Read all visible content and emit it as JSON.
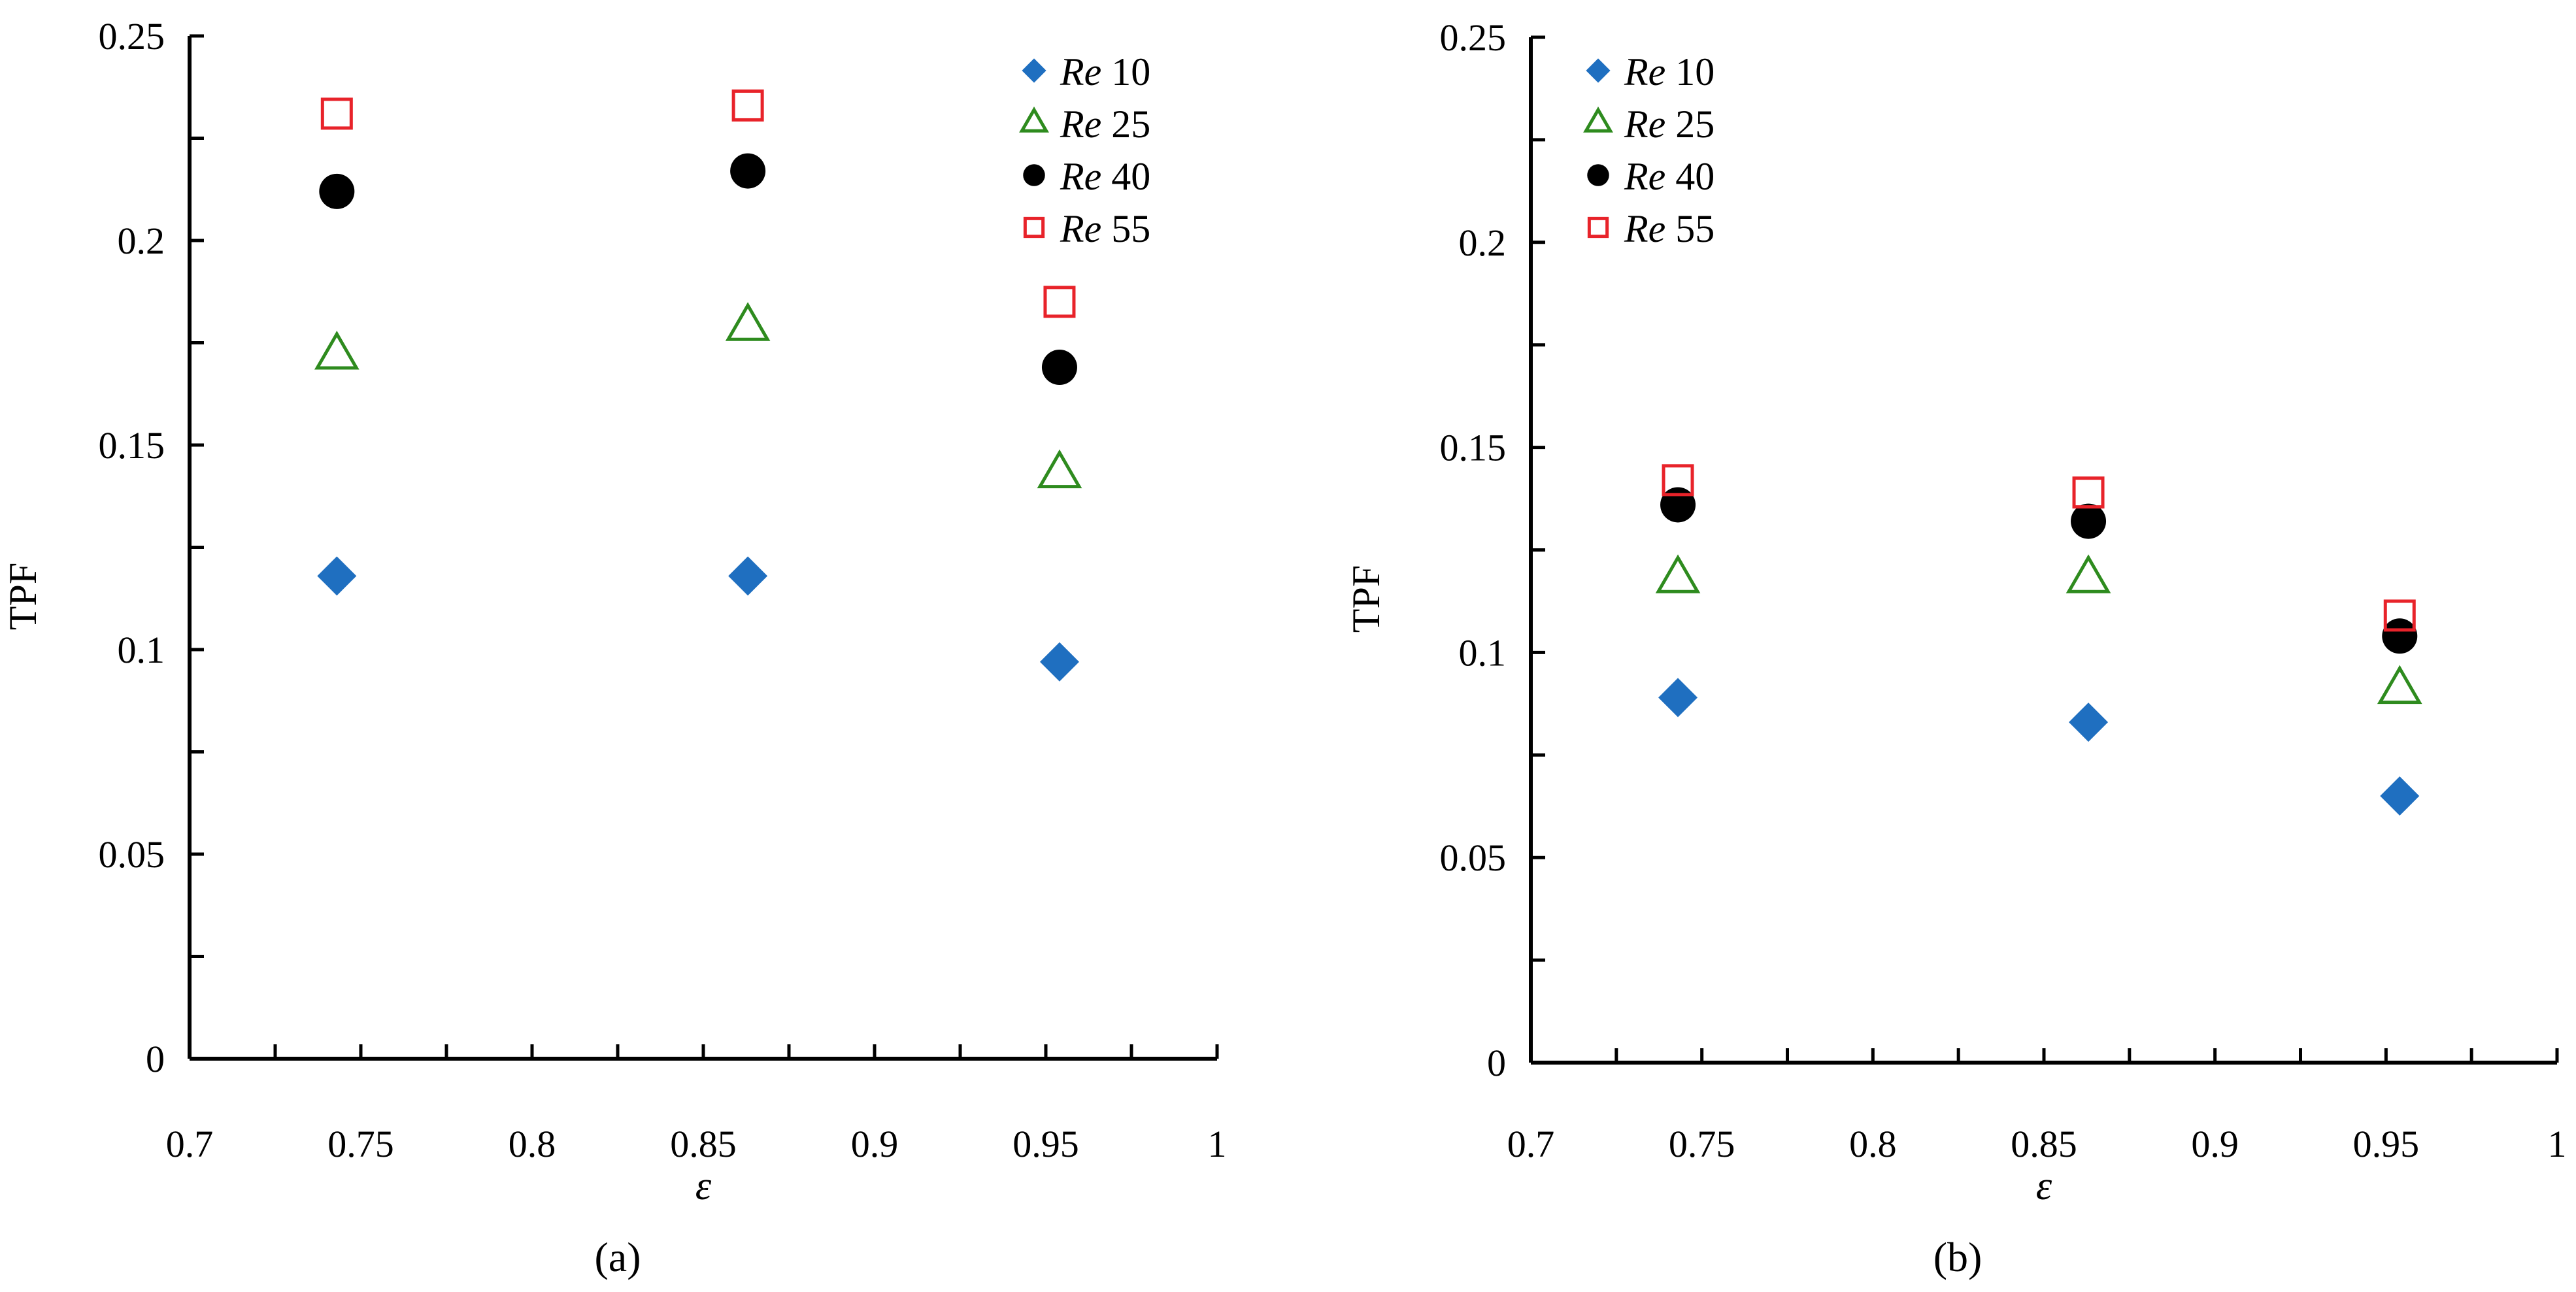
{
  "chart_data": [
    {
      "type": "scatter",
      "panel_label": "(a)",
      "xlabel": "ε",
      "ylabel": "TPF",
      "xlim": [
        0.7,
        1.0
      ],
      "ylim": [
        0,
        0.25
      ],
      "xticks": [
        "0.7",
        "0.75",
        "0.8",
        "0.85",
        "0.9",
        "0.95",
        "1"
      ],
      "yticks": [
        "0",
        "0.05",
        "0.1",
        "0.15",
        "0.2",
        "0.25"
      ],
      "legend_position": "top-right",
      "series": [
        {
          "name": "Re 10",
          "re_prefix": "Re",
          "re_value": "10",
          "marker": "diamond",
          "color": "#1f6fc0",
          "x": [
            0.743,
            0.863,
            0.954
          ],
          "y": [
            0.118,
            0.118,
            0.097
          ]
        },
        {
          "name": "Re 25",
          "re_prefix": "Re",
          "re_value": "25",
          "marker": "triangle-open",
          "color": "#2e8b1e",
          "x": [
            0.743,
            0.863,
            0.954
          ],
          "y": [
            0.172,
            0.179,
            0.143
          ]
        },
        {
          "name": "Re 40",
          "re_prefix": "Re",
          "re_value": "40",
          "marker": "circle",
          "color": "#000000",
          "x": [
            0.743,
            0.863,
            0.954
          ],
          "y": [
            0.212,
            0.217,
            0.169
          ]
        },
        {
          "name": "Re 55",
          "re_prefix": "Re",
          "re_value": "55",
          "marker": "square-open",
          "color": "#e8232a",
          "x": [
            0.743,
            0.863,
            0.954
          ],
          "y": [
            0.231,
            0.233,
            0.185
          ]
        }
      ]
    },
    {
      "type": "scatter",
      "panel_label": "(b)",
      "xlabel": "ε",
      "ylabel": "TPF",
      "xlim": [
        0.7,
        1.0
      ],
      "ylim": [
        0,
        0.25
      ],
      "xticks": [
        "0.7",
        "0.75",
        "0.8",
        "0.85",
        "0.9",
        "0.95",
        "1"
      ],
      "yticks": [
        "0",
        "0.05",
        "0.1",
        "0.15",
        "0.2",
        "0.25"
      ],
      "legend_position": "top-left",
      "series": [
        {
          "name": "Re 10",
          "re_prefix": "Re",
          "re_value": "10",
          "marker": "diamond",
          "color": "#1f6fc0",
          "x": [
            0.743,
            0.863,
            0.954
          ],
          "y": [
            0.089,
            0.083,
            0.065
          ]
        },
        {
          "name": "Re 25",
          "re_prefix": "Re",
          "re_value": "25",
          "marker": "triangle-open",
          "color": "#2e8b1e",
          "x": [
            0.743,
            0.863,
            0.954
          ],
          "y": [
            0.118,
            0.118,
            0.091
          ]
        },
        {
          "name": "Re 40",
          "re_prefix": "Re",
          "re_value": "40",
          "marker": "circle",
          "color": "#000000",
          "x": [
            0.743,
            0.863,
            0.954
          ],
          "y": [
            0.136,
            0.132,
            0.104
          ]
        },
        {
          "name": "Re 55",
          "re_prefix": "Re",
          "re_value": "55",
          "marker": "square-open",
          "color": "#e8232a",
          "x": [
            0.743,
            0.863,
            0.954
          ],
          "y": [
            0.142,
            0.139,
            0.109
          ]
        }
      ]
    }
  ]
}
